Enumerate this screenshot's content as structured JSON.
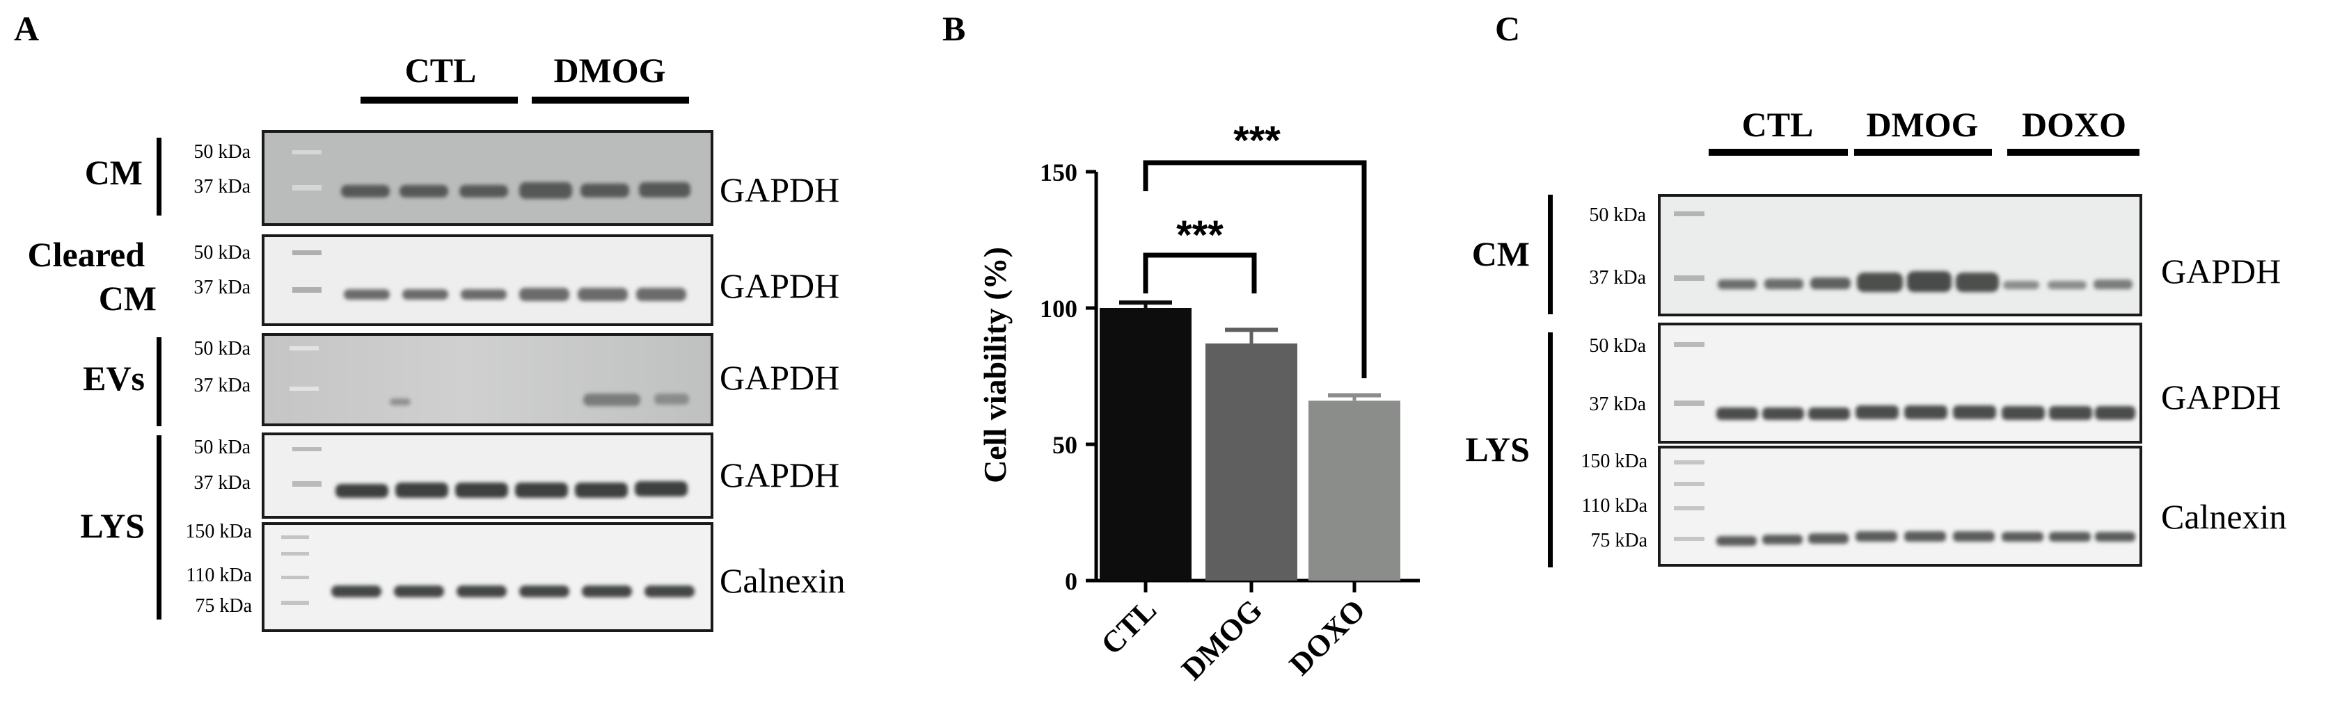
{
  "panels": {
    "A": {
      "label": "A",
      "groups": [
        "CTL",
        "DMOG"
      ],
      "rows": [
        {
          "sample": "CM",
          "markers": [
            "50 kDa",
            "37 kDa"
          ],
          "protein": "GAPDH"
        },
        {
          "sample_line1": "Cleared",
          "sample_line2": "CM",
          "markers": [
            "50 kDa",
            "37 kDa"
          ],
          "protein": "GAPDH"
        },
        {
          "sample": "EVs",
          "markers": [
            "50 kDa",
            "37 kDa"
          ],
          "protein": "GAPDH"
        },
        {
          "markers": [
            "50 kDa",
            "37 kDa"
          ],
          "protein": "GAPDH"
        },
        {
          "markers": [
            "150 kDa",
            "110 kDa",
            "75 kDa"
          ],
          "protein": "Calnexin"
        }
      ],
      "lys_label": "LYS"
    },
    "B": {
      "label": "B",
      "significance": [
        "***",
        "***"
      ]
    },
    "C": {
      "label": "C",
      "groups": [
        "CTL",
        "DMOG",
        "DOXO"
      ],
      "rows": [
        {
          "sample": "CM",
          "markers": [
            "50 kDa",
            "37 kDa"
          ],
          "protein": "GAPDH"
        },
        {
          "markers": [
            "50 kDa",
            "37 kDa"
          ],
          "protein": "GAPDH"
        },
        {
          "markers": [
            "150 kDa",
            "110 kDa",
            "75 kDa"
          ],
          "protein": "Calnexin"
        }
      ],
      "lys_label": "LYS"
    }
  },
  "chart_data": {
    "type": "bar",
    "title": "",
    "xlabel": "",
    "ylabel": "Cell viability (%)",
    "categories": [
      "CTL",
      "DMOG",
      "DOXO"
    ],
    "values": [
      100,
      87,
      66
    ],
    "errors": [
      2,
      5,
      2
    ],
    "ylim": [
      0,
      150
    ],
    "yticks": [
      0,
      50,
      100,
      150
    ],
    "bar_colors": [
      "#0d0d0d",
      "#5e5f5e",
      "#8b8d8b"
    ],
    "grid": false,
    "legend": "none"
  }
}
